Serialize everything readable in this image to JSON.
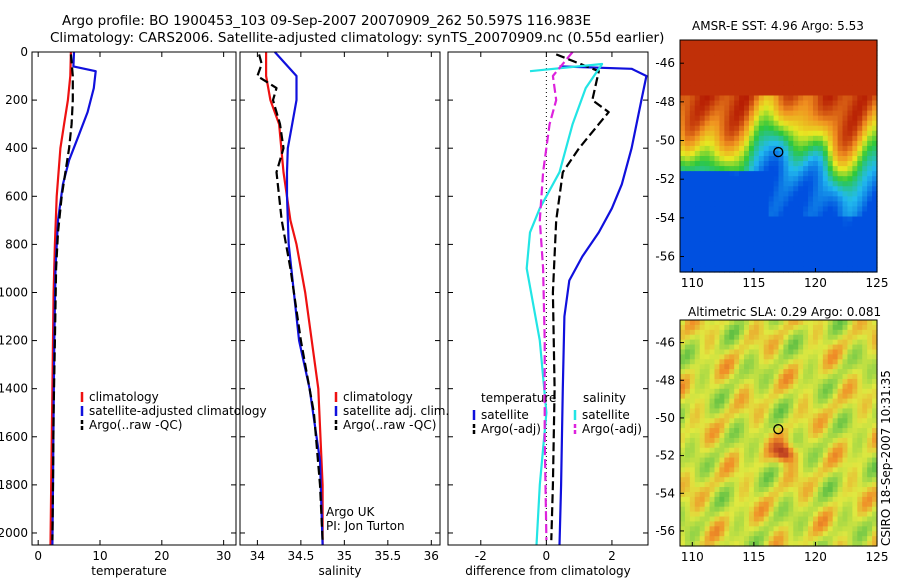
{
  "header": {
    "line1": "Argo profile: BO 1900453_103 09-Sep-2007 20070909_262 50.597S 116.983E",
    "line2": "Climatology: CARS2006. Satellite-adjusted climatology: synTS_20070909.nc (0.55d earlier)"
  },
  "credit": "CSIRO 18-Sep-2007 10:31:35",
  "colors": {
    "red": "#ee1111",
    "blue": "#1010dd",
    "black": "#000000",
    "cyan": "#22e5e5",
    "magenta": "#dd22dd"
  },
  "chart_data": [
    {
      "type": "line",
      "panel": "temperature",
      "xlabel": "temperature",
      "ylabel": "",
      "xlim": [
        -1,
        32
      ],
      "ylim": [
        2050,
        0
      ],
      "xticks": [
        0,
        10,
        20,
        30
      ],
      "yticks": [
        0,
        200,
        400,
        600,
        800,
        1000,
        1200,
        1400,
        1600,
        1800,
        2000
      ],
      "legend": [
        "climatology",
        "satellite-adjusted climatology",
        "Argo(..raw -QC)"
      ],
      "series": [
        {
          "name": "climatology",
          "color": "red",
          "dash": "solid",
          "x": [
            5.3,
            5.2,
            4.8,
            4.2,
            3.6,
            3.0,
            2.7,
            2.5,
            2.3,
            2.1,
            2.0
          ],
          "y": [
            0,
            100,
            200,
            300,
            400,
            600,
            800,
            1000,
            1400,
            1800,
            2050
          ]
        },
        {
          "name": "satellite-adjusted climatology",
          "color": "blue",
          "dash": "solid",
          "x": [
            5.8,
            5.7,
            9.3,
            9.0,
            8.0,
            6.5,
            5.0,
            4.0,
            3.2,
            2.8,
            2.6,
            2.5,
            2.4,
            2.3
          ],
          "y": [
            0,
            60,
            80,
            150,
            250,
            350,
            450,
            550,
            700,
            900,
            1200,
            1500,
            1800,
            2050
          ]
        },
        {
          "name": "Argo(..raw -QC)",
          "color": "black",
          "dash": "dashed",
          "x": [
            5.3,
            5.6,
            5.6,
            5.4,
            5.0,
            4.4,
            3.8,
            3.2,
            2.9,
            2.7,
            2.5,
            2.4,
            2.3
          ],
          "y": [
            10,
            100,
            200,
            300,
            400,
            500,
            600,
            750,
            900,
            1200,
            1500,
            1800,
            2030
          ]
        }
      ]
    },
    {
      "type": "line",
      "panel": "salinity",
      "xlabel": "salinity",
      "ylabel": "",
      "xlim": [
        33.8,
        36.1
      ],
      "ylim": [
        2050,
        0
      ],
      "xticks": [
        34,
        34.5,
        35,
        35.5,
        36
      ],
      "legend": [
        "climatology",
        "satellite adj. clim.",
        "Argo(..raw -QC)"
      ],
      "annotation": [
        "Argo UK",
        "PI: Jon Turton"
      ],
      "series": [
        {
          "name": "climatology",
          "color": "red",
          "dash": "solid",
          "x": [
            34.1,
            34.1,
            34.15,
            34.25,
            34.3,
            34.38,
            34.45,
            34.55,
            34.7,
            34.75,
            34.75
          ],
          "y": [
            0,
            100,
            200,
            300,
            500,
            700,
            800,
            1000,
            1400,
            1800,
            2050
          ]
        },
        {
          "name": "satellite adj. clim.",
          "color": "blue",
          "dash": "solid",
          "x": [
            34.2,
            34.45,
            34.45,
            34.4,
            34.35,
            34.34,
            34.34,
            34.36,
            34.42,
            34.48,
            34.6,
            34.72,
            34.75
          ],
          "y": [
            0,
            100,
            200,
            300,
            400,
            500,
            600,
            800,
            1000,
            1200,
            1400,
            1700,
            2050
          ]
        },
        {
          "name": "Argo(..raw -QC)",
          "color": "black",
          "dash": "dashed",
          "x": [
            34.02,
            34.05,
            34.0,
            34.22,
            34.18,
            34.26,
            34.3,
            34.22,
            34.28,
            34.38,
            34.5,
            34.65,
            34.72,
            34.75
          ],
          "y": [
            10,
            50,
            100,
            150,
            200,
            300,
            400,
            500,
            700,
            900,
            1200,
            1500,
            1800,
            2030
          ]
        }
      ]
    },
    {
      "type": "line",
      "panel": "difference",
      "xlabel": "difference from climatology",
      "ylabel": "",
      "xlim": [
        -3,
        3.1
      ],
      "ylim": [
        2050,
        0
      ],
      "xticks": [
        -2,
        0,
        2
      ],
      "legend_groups": [
        {
          "title": "temperature",
          "entries": [
            "satellite",
            "Argo(-adj)"
          ]
        },
        {
          "title": "salinity",
          "entries": [
            "satellite",
            "Argo(-adj)"
          ]
        }
      ],
      "series": [
        {
          "name": "temperature satellite",
          "color": "blue",
          "dash": "solid",
          "x": [
            0.4,
            2.6,
            3.05,
            2.9,
            2.6,
            2.3,
            2.0,
            1.6,
            1.1,
            0.7,
            0.55,
            0.5,
            0.45,
            0.4
          ],
          "y": [
            60,
            70,
            100,
            200,
            400,
            550,
            650,
            750,
            850,
            950,
            1100,
            1400,
            1800,
            2050
          ]
        },
        {
          "name": "temperature Argo(-adj)",
          "color": "black",
          "dash": "dashed",
          "x": [
            0.3,
            1.6,
            1.4,
            1.9,
            1.6,
            1.0,
            0.5,
            0.3,
            0.2,
            0.25,
            0.2,
            0.15
          ],
          "y": [
            10,
            80,
            200,
            250,
            300,
            400,
            500,
            700,
            1000,
            1400,
            1800,
            2030
          ]
        },
        {
          "name": "salinity satellite",
          "color": "cyan",
          "dash": "solid",
          "x": [
            -0.5,
            1.7,
            1.2,
            0.8,
            0.4,
            -0.2,
            -0.5,
            -0.6,
            -0.2,
            0.0,
            -0.2,
            -0.3
          ],
          "y": [
            80,
            50,
            150,
            300,
            500,
            650,
            750,
            900,
            1200,
            1500,
            1800,
            2050
          ]
        },
        {
          "name": "salinity Argo(-adj)",
          "color": "magenta",
          "dash": "dashed",
          "x": [
            0.8,
            0.2,
            0.3,
            0.1,
            -0.1,
            -0.2,
            -0.1,
            -0.05,
            -0.05,
            0.0
          ],
          "y": [
            0,
            100,
            200,
            300,
            500,
            700,
            900,
            1200,
            1600,
            2030
          ]
        }
      ]
    },
    {
      "type": "heatmap",
      "panel": "map-sst",
      "title": "AMSR-E SST: 4.96 Argo: 5.53",
      "xlim": [
        109,
        125
      ],
      "ylim": [
        -56.8,
        -44.8
      ],
      "xticks": [
        110,
        115,
        120,
        125
      ],
      "yticks": [
        -46,
        -48,
        -50,
        -52,
        -54,
        -56
      ],
      "marker": {
        "x": 116.983,
        "y": -50.597
      },
      "colormap": [
        "#0050e0",
        "#22bbee",
        "#2ec83c",
        "#e8e822",
        "#f09020",
        "#b01000"
      ]
    },
    {
      "type": "heatmap",
      "panel": "map-sla",
      "title": "Altimetric SLA: 0.29 Argo: 0.081",
      "xlim": [
        109,
        125
      ],
      "ylim": [
        -56.8,
        -44.8
      ],
      "xticks": [
        110,
        115,
        120,
        125
      ],
      "yticks": [
        -46,
        -48,
        -50,
        -52,
        -54,
        -56
      ],
      "marker": {
        "x": 116.983,
        "y": -50.597
      },
      "colormap": [
        "#18a038",
        "#88d048",
        "#e0e840",
        "#f09028",
        "#c04020",
        "#8a2010"
      ]
    }
  ]
}
